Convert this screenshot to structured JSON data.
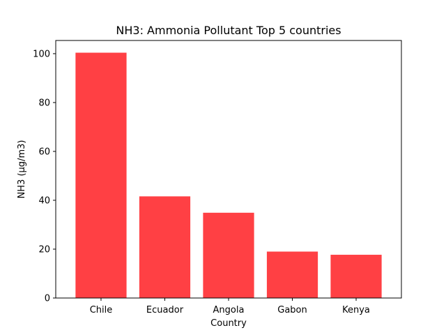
{
  "chart_data": {
    "type": "bar",
    "title": "NH3: Ammonia Pollutant Top 5 countries",
    "xlabel": "Country",
    "ylabel": "NH3 (µg/m3)",
    "categories": [
      "Chile",
      "Ecuador",
      "Angola",
      "Gabon",
      "Kenya"
    ],
    "values": [
      100.4,
      41.6,
      34.9,
      19.0,
      17.7
    ],
    "ylim": [
      0,
      105.4
    ],
    "yticks": [
      "0",
      "20",
      "40",
      "60",
      "80",
      "100"
    ],
    "bar_color": "#ff4044",
    "grid": false,
    "legend": "none"
  }
}
